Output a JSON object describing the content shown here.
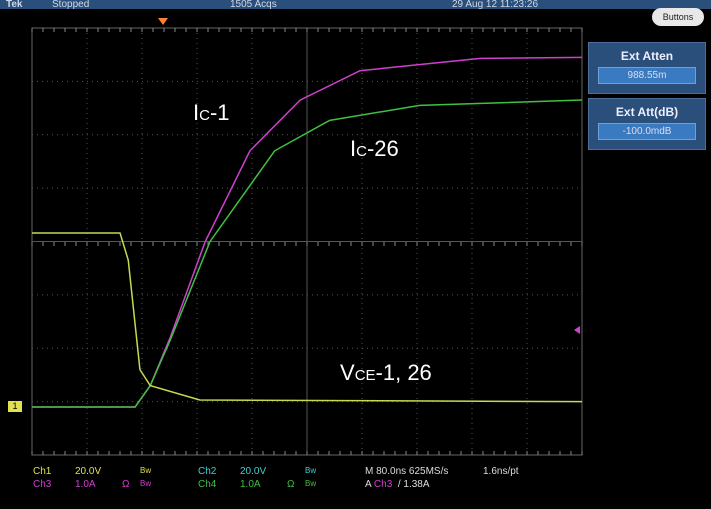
{
  "header": {
    "brand": "Tek",
    "status": "Stopped",
    "acqs": "1505 Acqs",
    "datetime": "29 Aug 12 11:23:26",
    "buttons_label": "Buttons"
  },
  "side_menu": [
    {
      "title": "Ext Atten",
      "value": "988.55m"
    },
    {
      "title": "Ext Att(dB)",
      "value": "-100.0mdB"
    }
  ],
  "readouts": {
    "ch1": {
      "name": "Ch1",
      "scale": "20.0V",
      "bw": "Bw"
    },
    "ch2": {
      "name": "Ch2",
      "scale": "20.0V",
      "bw": "Bw"
    },
    "ch3": {
      "name": "Ch3",
      "scale": "1.0A",
      "term": "Ω",
      "bw": "Bw"
    },
    "ch4": {
      "name": "Ch4",
      "scale": "1.0A",
      "term": "Ω",
      "bw": "Bw"
    },
    "timebase": "M 80.0ns 625MS/s",
    "resolution": "1.6ns/pt",
    "trigger": {
      "prefix": "A",
      "source": "Ch3",
      "slope": "/",
      "level": "1.38A"
    }
  },
  "ground_marker": "1",
  "colors": {
    "ch1": "#e0e050",
    "ch2": "#40d0d0",
    "ch3": "#d040d0",
    "ch4": "#40c040",
    "panel": "#2a4f7a"
  },
  "chart_data": {
    "type": "line",
    "xlabel": "",
    "ylabel": "",
    "x_units": "ns",
    "y_units": "divisions",
    "xlim": [
      0,
      800
    ],
    "ylim": [
      0,
      8
    ],
    "grid": true,
    "annotations": [
      {
        "main": "I",
        "sub": "C",
        "rest": "-1"
      },
      {
        "main": "I",
        "sub": "C",
        "rest": "-26"
      },
      {
        "main": "V",
        "sub": "CE",
        "rest": "-1, 26"
      }
    ],
    "series": [
      {
        "color": "#d040d0",
        "x": [
          0,
          150,
          172,
          201,
          252,
          317,
          390,
          477,
          652,
          800
        ],
        "y": [
          0.9,
          0.9,
          1.3,
          2.2,
          4.0,
          5.7,
          6.65,
          7.2,
          7.43,
          7.45
        ]
      },
      {
        "color": "#40c040",
        "x": [
          0,
          150,
          172,
          201,
          259,
          353,
          433,
          564,
          800
        ],
        "y": [
          0.9,
          0.9,
          1.3,
          2.15,
          4.0,
          5.7,
          6.27,
          6.55,
          6.65
        ]
      },
      {
        "color": "#c8d850",
        "x": [
          0,
          128,
          140,
          157,
          172,
          244,
          800
        ],
        "y": [
          4.16,
          4.16,
          3.65,
          1.6,
          1.3,
          1.03,
          1.0
        ]
      }
    ]
  }
}
